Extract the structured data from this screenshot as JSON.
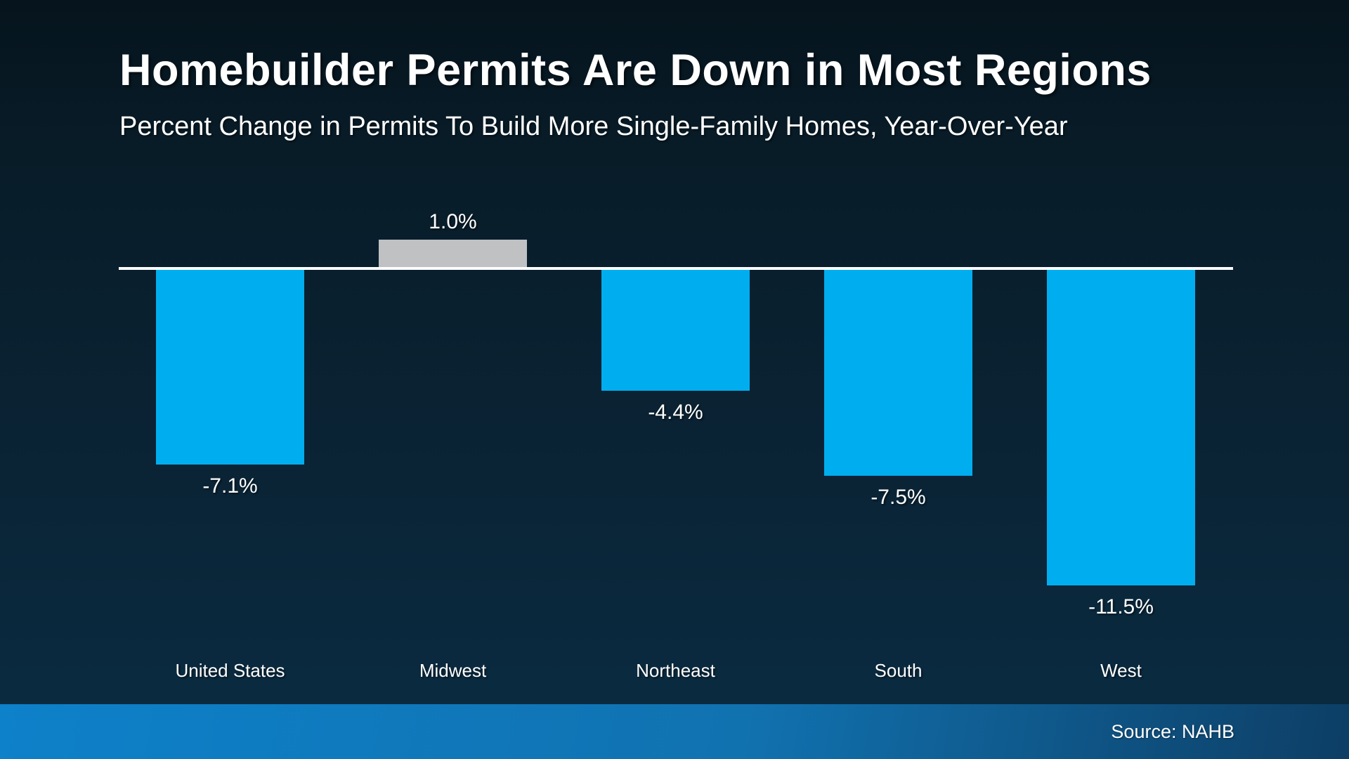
{
  "chart_data": {
    "type": "bar",
    "title": "Homebuilder Permits Are Down in Most Regions",
    "subtitle": "Percent Change in Permits To Build More Single-Family Homes, Year-Over-Year",
    "categories": [
      "United States",
      "Midwest",
      "Northeast",
      "South",
      "West"
    ],
    "values": [
      -7.1,
      1.0,
      -4.4,
      -7.5,
      -11.5
    ],
    "labels": [
      "-7.1%",
      "1.0%",
      "-4.4%",
      "-7.5%",
      "-11.5%"
    ],
    "bar_colors": [
      "#00AEEF",
      "#BFC1C3",
      "#00AEEF",
      "#00AEEF",
      "#00AEEF"
    ],
    "ylim": [
      -12.5,
      2.5
    ],
    "grid": false,
    "legend": null,
    "xlabel": "",
    "ylabel": ""
  },
  "source": {
    "label": "Source: NAHB"
  },
  "colors": {
    "negative_bar": "#00AEEF",
    "positive_bar": "#BFC1C3",
    "axis_line": "#FFFFFF",
    "text": "#FFFFFF",
    "background_top": "#06141D",
    "background_bottom": "#0A2C43",
    "footer_gradient_left": "#0D81CA",
    "footer_gradient_mid": "#1172B0",
    "footer_gradient_right": "#0D3E65"
  }
}
